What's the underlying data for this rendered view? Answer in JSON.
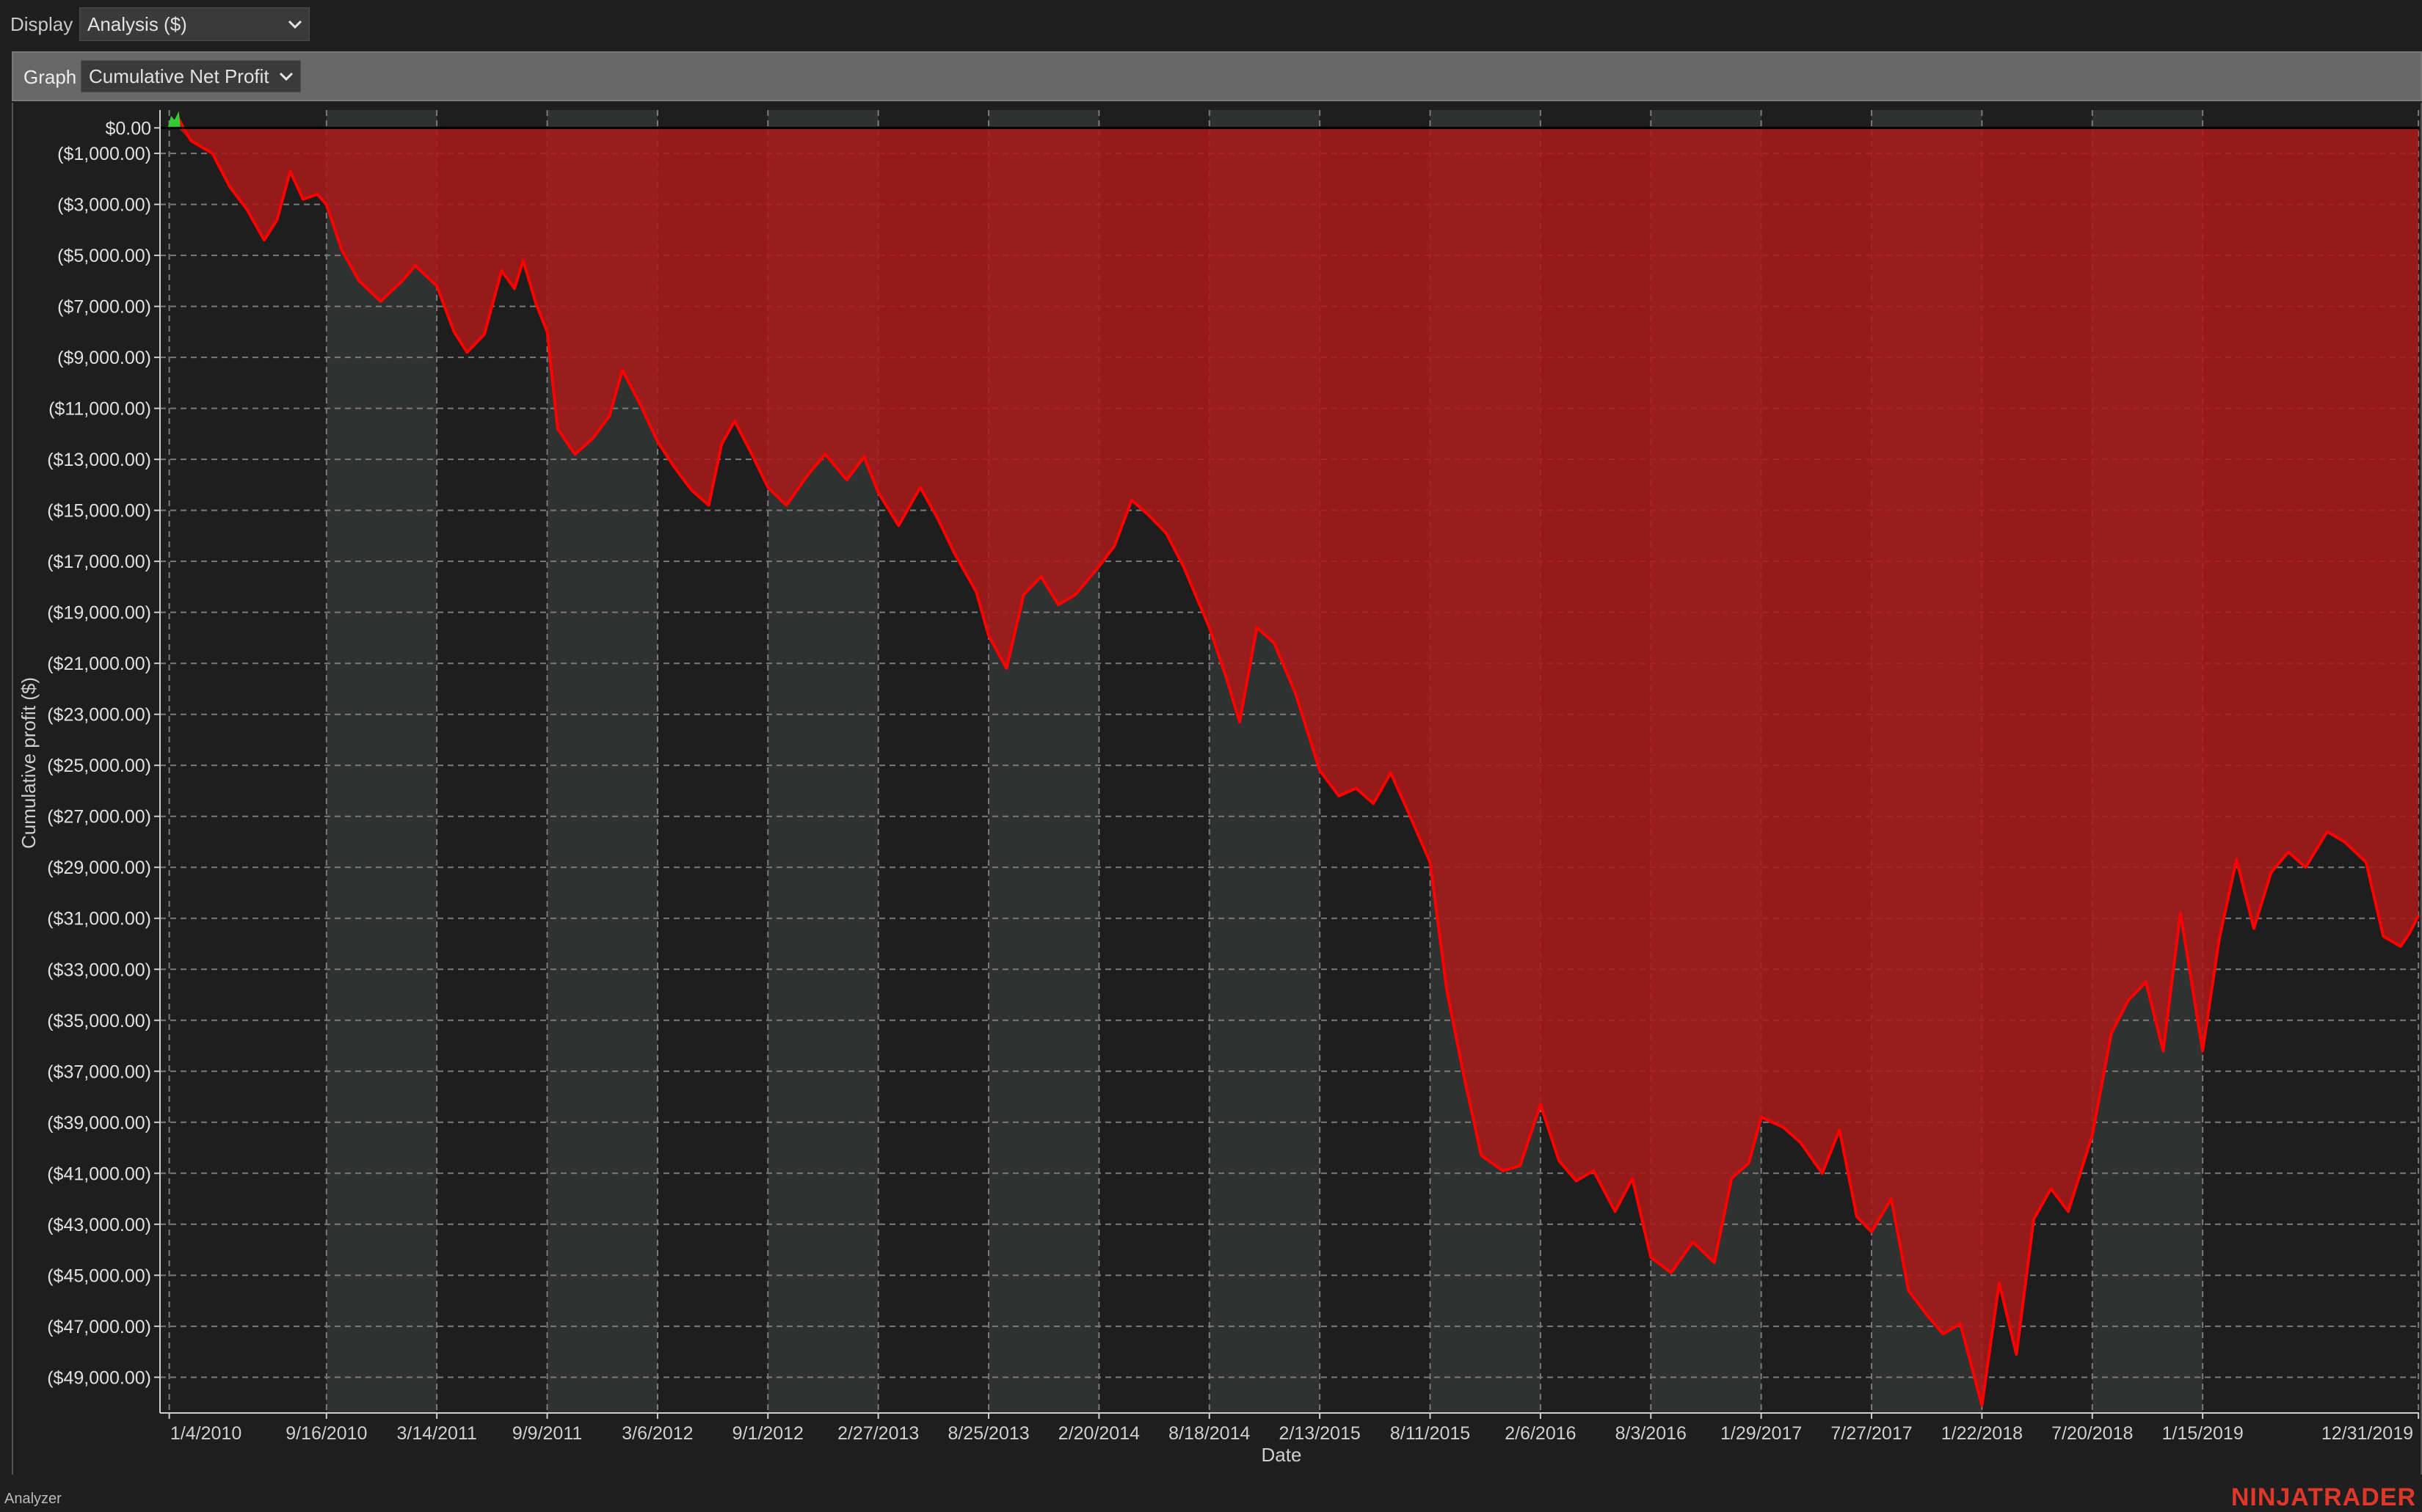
{
  "toolbar": {
    "display_label": "Display",
    "display_value": "Analysis ($)",
    "graph_label": "Graph",
    "graph_value": "Cumulative Net Profit",
    "dropdown_icon": "chevron-down-icon"
  },
  "footer": {
    "left_label": "Analyzer",
    "brand": "NINJATRADER"
  },
  "colors": {
    "background": "#1e1e1e",
    "band_light": "#303232",
    "profit_line": "#ff0000",
    "drawdown_fill": "#a81a1a",
    "positive_line": "#33cc33",
    "grid": "#7a7a7a",
    "brand": "#e0372b"
  },
  "chart_data": {
    "type": "line",
    "title": "",
    "xlabel": "Date",
    "ylabel": "Cumulative profit ($)",
    "x_tick_labels": [
      "1/4/2010",
      "9/16/2010",
      "3/14/2011",
      "9/9/2011",
      "3/6/2012",
      "9/1/2012",
      "2/27/2013",
      "8/25/2013",
      "2/20/2014",
      "8/18/2014",
      "2/13/2015",
      "8/11/2015",
      "2/6/2016",
      "8/3/2016",
      "1/29/2017",
      "7/27/2017",
      "1/22/2018",
      "7/20/2018",
      "1/15/2019",
      "12/31/2019"
    ],
    "y_tick_labels": [
      "$0.00",
      "($1,000.00)",
      "($3,000.00)",
      "($5,000.00)",
      "($7,000.00)",
      "($9,000.00)",
      "($11,000.00)",
      "($13,000.00)",
      "($15,000.00)",
      "($17,000.00)",
      "($19,000.00)",
      "($21,000.00)",
      "($23,000.00)",
      "($25,000.00)",
      "($27,000.00)",
      "($29,000.00)",
      "($31,000.00)",
      "($33,000.00)",
      "($35,000.00)",
      "($37,000.00)",
      "($39,000.00)",
      "($41,000.00)",
      "($43,000.00)",
      "($45,000.00)",
      "($47,000.00)",
      "($49,000.00)"
    ],
    "y_ticks": [
      0,
      -1000,
      -3000,
      -5000,
      -7000,
      -9000,
      -11000,
      -13000,
      -15000,
      -17000,
      -19000,
      -21000,
      -23000,
      -25000,
      -27000,
      -29000,
      -31000,
      -33000,
      -35000,
      -37000,
      -39000,
      -41000,
      -43000,
      -45000,
      -47000,
      -49000
    ],
    "ylim": [
      -50400,
      700
    ],
    "xlim": [
      "2009-12-20",
      "2020-01-01"
    ],
    "grid": true,
    "legend": "none",
    "series": [
      {
        "values": [
          [
            "2010-01-04",
            0
          ],
          [
            "2010-01-18",
            400
          ],
          [
            "2010-02-08",
            -500
          ],
          [
            "2010-03-15",
            -1000
          ],
          [
            "2010-04-12",
            -2300
          ],
          [
            "2010-05-10",
            -3200
          ],
          [
            "2010-06-07",
            -4400
          ],
          [
            "2010-06-28",
            -3600
          ],
          [
            "2010-07-19",
            -1700
          ],
          [
            "2010-08-09",
            -2800
          ],
          [
            "2010-09-01",
            -2600
          ],
          [
            "2010-09-16",
            -3000
          ],
          [
            "2010-10-11",
            -4800
          ],
          [
            "2010-11-08",
            -6000
          ],
          [
            "2010-12-13",
            -6800
          ],
          [
            "2011-01-17",
            -6000
          ],
          [
            "2011-02-07",
            -5400
          ],
          [
            "2011-03-14",
            -6200
          ],
          [
            "2011-04-11",
            -8000
          ],
          [
            "2011-05-02",
            -8800
          ],
          [
            "2011-05-30",
            -8100
          ],
          [
            "2011-06-27",
            -5600
          ],
          [
            "2011-07-18",
            -6300
          ],
          [
            "2011-08-01",
            -5200
          ],
          [
            "2011-08-22",
            -6900
          ],
          [
            "2011-09-09",
            -8000
          ],
          [
            "2011-09-26",
            -11800
          ],
          [
            "2011-10-24",
            -12800
          ],
          [
            "2011-11-21",
            -12200
          ],
          [
            "2011-12-19",
            -11300
          ],
          [
            "2012-01-09",
            -9500
          ],
          [
            "2012-02-06",
            -10800
          ],
          [
            "2012-03-06",
            -12300
          ],
          [
            "2012-04-02",
            -13300
          ],
          [
            "2012-04-30",
            -14200
          ],
          [
            "2012-05-28",
            -14800
          ],
          [
            "2012-06-18",
            -12400
          ],
          [
            "2012-07-09",
            -11500
          ],
          [
            "2012-08-06",
            -12800
          ],
          [
            "2012-09-01",
            -14100
          ],
          [
            "2012-10-01",
            -14800
          ],
          [
            "2012-11-05",
            -13600
          ],
          [
            "2012-12-03",
            -12800
          ],
          [
            "2013-01-07",
            -13800
          ],
          [
            "2013-02-04",
            -12900
          ],
          [
            "2013-02-27",
            -14300
          ],
          [
            "2013-04-01",
            -15600
          ],
          [
            "2013-05-06",
            -14100
          ],
          [
            "2013-06-03",
            -15300
          ],
          [
            "2013-07-01",
            -16700
          ],
          [
            "2013-08-05",
            -18200
          ],
          [
            "2013-08-25",
            -19900
          ],
          [
            "2013-09-23",
            -21200
          ],
          [
            "2013-10-21",
            -18300
          ],
          [
            "2013-11-18",
            -17600
          ],
          [
            "2013-12-16",
            -18700
          ],
          [
            "2014-01-13",
            -18300
          ],
          [
            "2014-02-20",
            -17200
          ],
          [
            "2014-03-17",
            -16400
          ],
          [
            "2014-04-14",
            -14600
          ],
          [
            "2014-05-12",
            -15200
          ],
          [
            "2014-06-09",
            -15900
          ],
          [
            "2014-07-07",
            -17200
          ],
          [
            "2014-08-18",
            -19600
          ],
          [
            "2014-09-15",
            -21600
          ],
          [
            "2014-10-06",
            -23300
          ],
          [
            "2014-11-03",
            -19600
          ],
          [
            "2014-12-01",
            -20200
          ],
          [
            "2015-01-05",
            -22200
          ],
          [
            "2015-02-13",
            -25200
          ],
          [
            "2015-03-16",
            -26200
          ],
          [
            "2015-04-13",
            -25900
          ],
          [
            "2015-05-11",
            -26500
          ],
          [
            "2015-06-08",
            -25300
          ],
          [
            "2015-07-06",
            -26800
          ],
          [
            "2015-08-11",
            -28800
          ],
          [
            "2015-09-07",
            -33800
          ],
          [
            "2015-10-05",
            -37200
          ],
          [
            "2015-11-02",
            -40300
          ],
          [
            "2015-12-07",
            -40900
          ],
          [
            "2016-01-04",
            -40700
          ],
          [
            "2016-02-06",
            -38300
          ],
          [
            "2016-03-07",
            -40500
          ],
          [
            "2016-04-04",
            -41300
          ],
          [
            "2016-05-02",
            -40900
          ],
          [
            "2016-06-06",
            -42500
          ],
          [
            "2016-07-04",
            -41200
          ],
          [
            "2016-08-03",
            -44300
          ],
          [
            "2016-09-05",
            -44900
          ],
          [
            "2016-10-10",
            -43700
          ],
          [
            "2016-11-14",
            -44500
          ],
          [
            "2016-12-12",
            -41200
          ],
          [
            "2017-01-09",
            -40600
          ],
          [
            "2017-01-29",
            -38800
          ],
          [
            "2017-03-06",
            -39200
          ],
          [
            "2017-04-03",
            -39800
          ],
          [
            "2017-05-08",
            -41000
          ],
          [
            "2017-06-05",
            -39300
          ],
          [
            "2017-07-03",
            -42700
          ],
          [
            "2017-07-27",
            -43300
          ],
          [
            "2017-08-28",
            -42000
          ],
          [
            "2017-09-25",
            -45600
          ],
          [
            "2017-10-23",
            -46500
          ],
          [
            "2017-11-20",
            -47300
          ],
          [
            "2017-12-18",
            -46900
          ],
          [
            "2018-01-22",
            -50100
          ],
          [
            "2018-02-19",
            -45300
          ],
          [
            "2018-03-19",
            -48100
          ],
          [
            "2018-04-16",
            -42800
          ],
          [
            "2018-05-14",
            -41600
          ],
          [
            "2018-06-11",
            -42500
          ],
          [
            "2018-07-20",
            -39500
          ],
          [
            "2018-08-20",
            -35500
          ],
          [
            "2018-09-17",
            -34200
          ],
          [
            "2018-10-15",
            -33500
          ],
          [
            "2018-11-12",
            -36200
          ],
          [
            "2018-12-10",
            -30800
          ],
          [
            "2019-01-15",
            -36200
          ],
          [
            "2019-02-11",
            -31800
          ],
          [
            "2019-03-11",
            -28700
          ],
          [
            "2019-04-08",
            -31400
          ],
          [
            "2019-05-06",
            -29200
          ],
          [
            "2019-06-03",
            -28400
          ],
          [
            "2019-07-01",
            -29000
          ],
          [
            "2019-08-05",
            -27600
          ],
          [
            "2019-09-02",
            -28000
          ],
          [
            "2019-10-07",
            -28800
          ],
          [
            "2019-11-04",
            -31700
          ],
          [
            "2019-12-02",
            -32100
          ],
          [
            "2019-12-16",
            -31600
          ],
          [
            "2019-12-31",
            -30900
          ]
        ]
      }
    ],
    "positive_series": {
      "values": [
        [
          "2010-01-04",
          0
        ],
        [
          "2010-01-08",
          350
        ],
        [
          "2010-01-13",
          200
        ],
        [
          "2010-01-18",
          450
        ],
        [
          "2010-01-20",
          0
        ]
      ]
    }
  }
}
